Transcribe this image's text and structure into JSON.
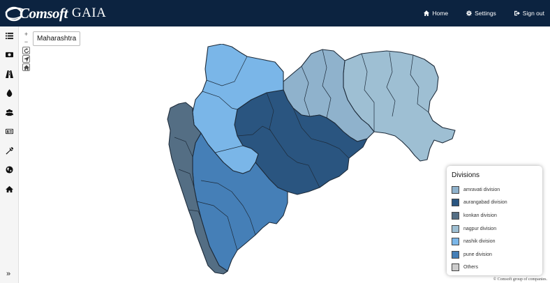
{
  "brand": {
    "name": "Comsoft",
    "product": "GAIA"
  },
  "nav": {
    "home": "Home",
    "settings": "Settings",
    "signout": "Sign out"
  },
  "map": {
    "region_label": "Maharashtra",
    "zoom_in": "+",
    "zoom_out": "−"
  },
  "legend": {
    "title": "Divisions",
    "items": [
      {
        "label": "amravati division",
        "color": "#8fb2cc"
      },
      {
        "label": "aurangabad division",
        "color": "#2a5580"
      },
      {
        "label": "konkan division",
        "color": "#546e84"
      },
      {
        "label": "nagpur division",
        "color": "#9ebfd3"
      },
      {
        "label": "nashik division",
        "color": "#7ab6e8"
      },
      {
        "label": "pune division",
        "color": "#457fb7"
      },
      {
        "label": "Others",
        "color": "#cccccc"
      }
    ]
  },
  "footer": {
    "copyright": "© Comsoft group of companies."
  },
  "sidebar": {
    "icons": [
      "list-icon",
      "money-icon",
      "road-icon",
      "water-drop-icon",
      "users-icon",
      "id-card-icon",
      "wrench-icon",
      "globe-icon",
      "home-icon"
    ]
  }
}
